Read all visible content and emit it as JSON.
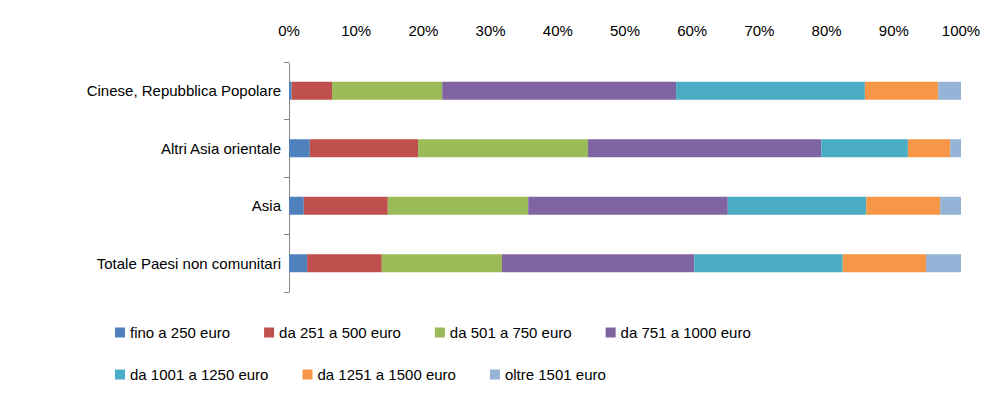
{
  "chart_data": {
    "type": "bar",
    "orientation": "horizontal",
    "stacked": true,
    "grid": false,
    "legend": "bottom",
    "categories": [
      "Cinese, Repubblica Popolare",
      "Altri Asia orientale",
      "Asia",
      "Totale Paesi non comunitari"
    ],
    "xlim": [
      0,
      100
    ],
    "xticks": [
      {
        "value": 0,
        "label": "0%"
      },
      {
        "value": 10,
        "label": "10%"
      },
      {
        "value": 20,
        "label": "20%"
      },
      {
        "value": 30,
        "label": "30%"
      },
      {
        "value": 40,
        "label": "40%"
      },
      {
        "value": 50,
        "label": "50%"
      },
      {
        "value": 60,
        "label": "60%"
      },
      {
        "value": 70,
        "label": "70%"
      },
      {
        "value": 80,
        "label": "80%"
      },
      {
        "value": 90,
        "label": "90%"
      },
      {
        "value": 100,
        "label": "100%"
      }
    ],
    "series": [
      {
        "name": "fino a 250 euro",
        "color": "#4F81BD",
        "values": [
          0.4,
          3.1,
          2.2,
          2.7
        ]
      },
      {
        "name": "da 251 a 500 euro",
        "color": "#C0504D",
        "values": [
          6.0,
          16.1,
          12.5,
          11.1
        ]
      },
      {
        "name": "da 501 a 750 euro",
        "color": "#9BBB59",
        "values": [
          16.4,
          25.3,
          20.9,
          17.9
        ]
      },
      {
        "name": "da 751 a 1000 euro",
        "color": "#8064A2",
        "values": [
          34.8,
          34.7,
          29.7,
          28.6
        ]
      },
      {
        "name": "da 1001 a 1250 euro",
        "color": "#4BACC6",
        "values": [
          28.1,
          12.9,
          20.6,
          22.1
        ]
      },
      {
        "name": "da 1251 a 1500 euro",
        "color": "#F79646",
        "values": [
          10.9,
          6.3,
          11.0,
          12.4
        ]
      },
      {
        "name": "oltre 1501 euro",
        "color": "#95B3D7",
        "values": [
          3.4,
          1.6,
          3.1,
          5.2
        ]
      }
    ]
  }
}
